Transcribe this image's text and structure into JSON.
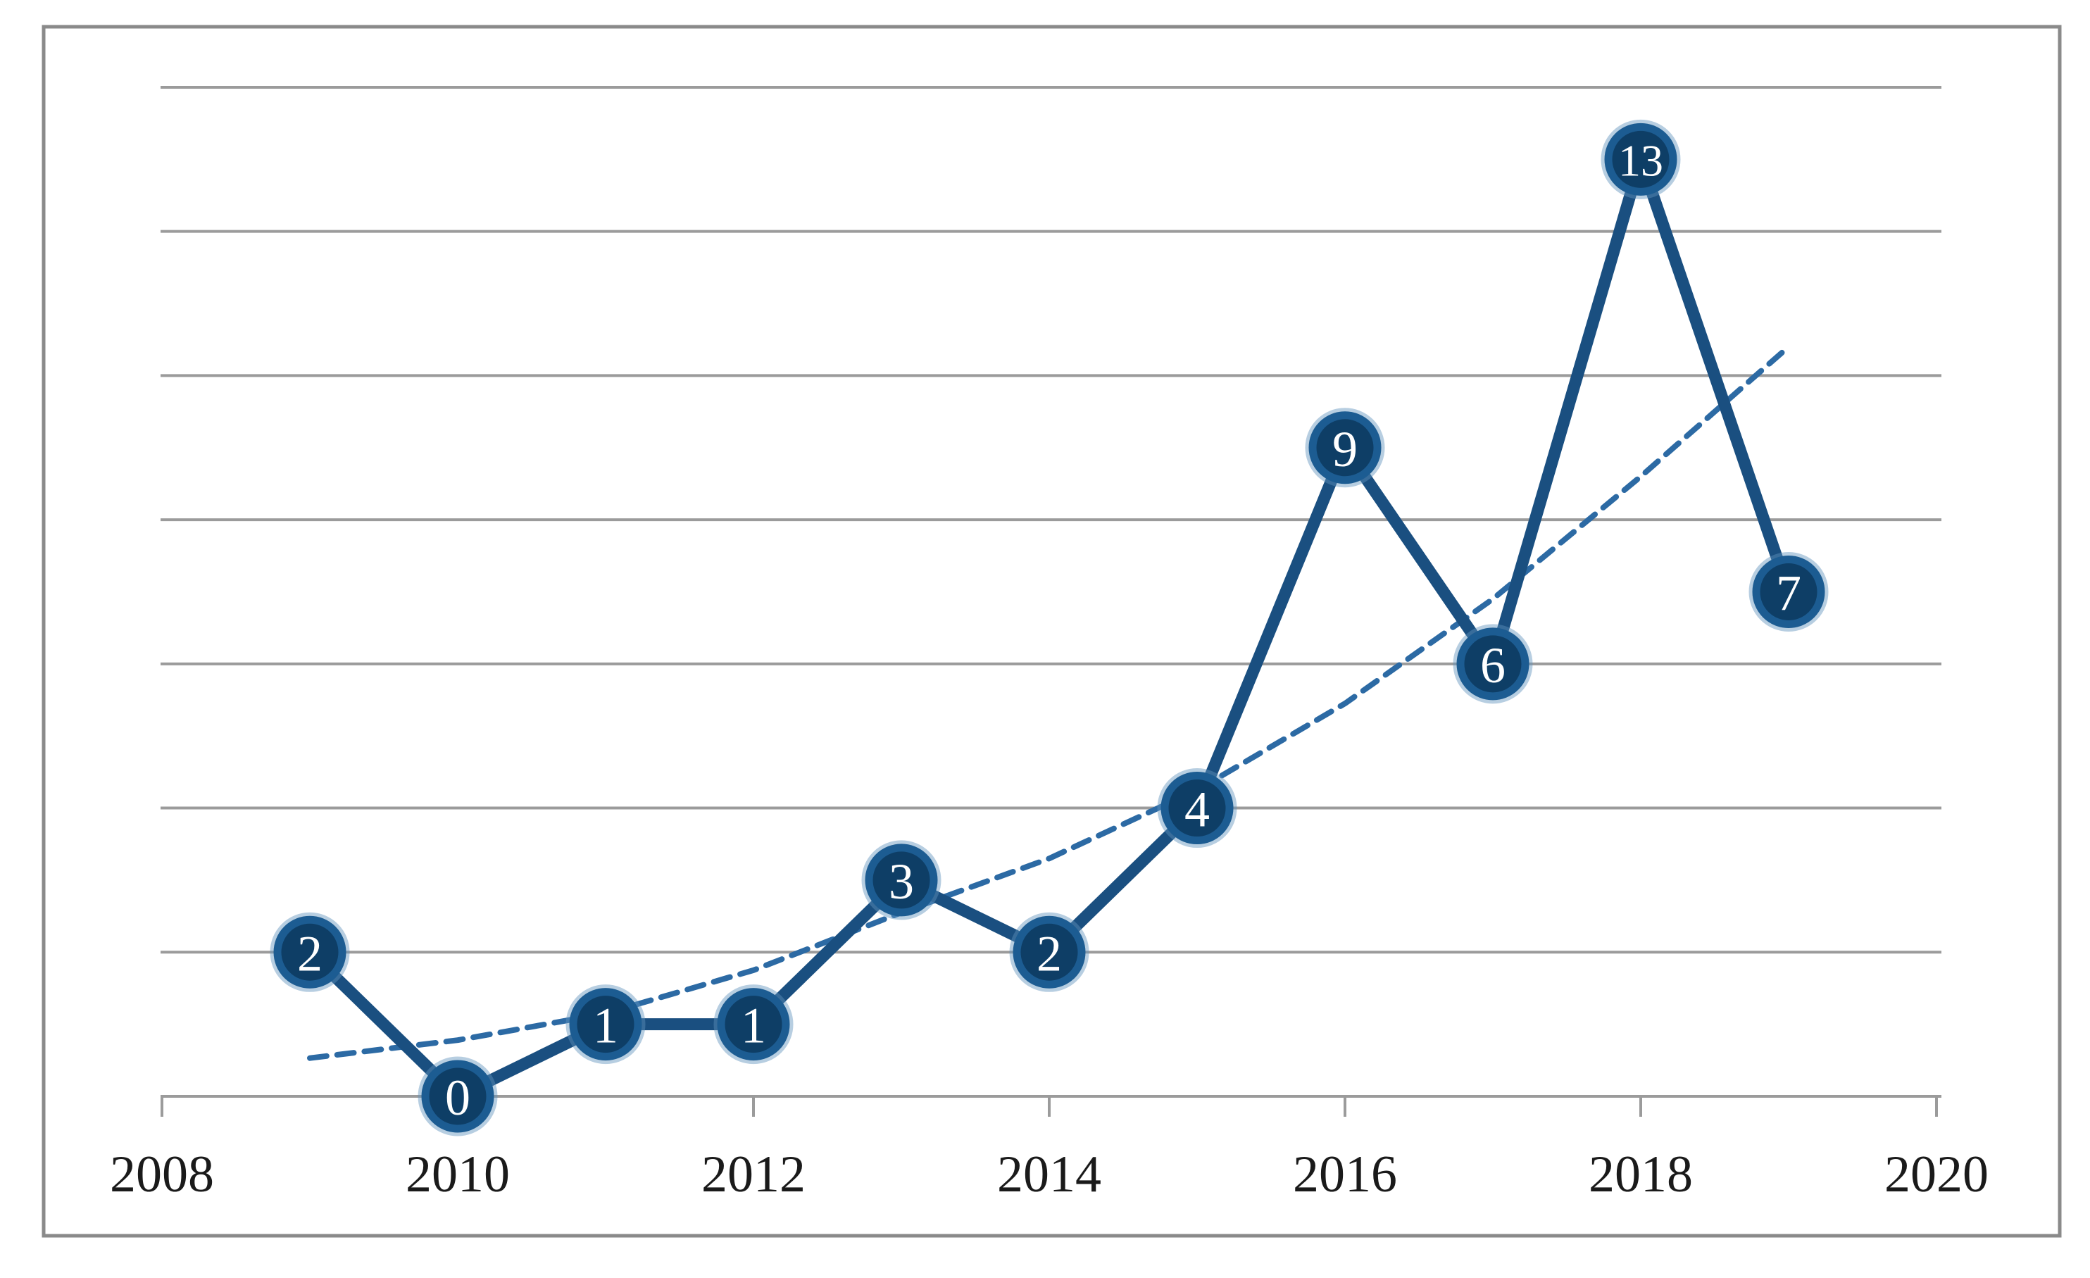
{
  "chart_data": {
    "type": "line",
    "title": "",
    "xlabel": "",
    "ylabel": "",
    "x": [
      2009,
      2010,
      2011,
      2012,
      2013,
      2014,
      2015,
      2016,
      2017,
      2018,
      2019
    ],
    "values": [
      2,
      0,
      1,
      1,
      3,
      2,
      4,
      9,
      6,
      13,
      7
    ],
    "point_labels": [
      "2",
      "0",
      "1",
      "1",
      "3",
      "2",
      "4",
      "9",
      "6",
      "13",
      "7"
    ],
    "x_tick_labels": [
      "2008",
      "2010",
      "2012",
      "2014",
      "2016",
      "2018",
      "2020"
    ],
    "x_ticks": [
      2008,
      2010,
      2012,
      2014,
      2016,
      2018,
      2020
    ],
    "xlim": [
      2008,
      2020
    ],
    "ylim": [
      0,
      14
    ],
    "y_grid_step": 2,
    "grid": true,
    "legend": "none",
    "trendline": {
      "style": "dashed",
      "x": [
        2009,
        2010,
        2011,
        2012,
        2013,
        2014,
        2015,
        2016,
        2017,
        2018,
        2019
      ],
      "values_est": [
        0.53,
        0.78,
        1.15,
        1.75,
        2.55,
        3.3,
        4.25,
        5.45,
        6.9,
        8.6,
        10.4
      ]
    },
    "colors": {
      "series_line": "#1a4f80",
      "marker_fill": "#0e3e66",
      "marker_ring": "#1c5c92",
      "marker_halo": "#5f93bd",
      "marker_text": "#ffffff",
      "trendline": "#2c6aa4",
      "gridline": "#9b9b9b",
      "axis_line": "#9b9b9b",
      "frame_border": "#8a8a8a",
      "tick_label": "#1a1a1a",
      "background": "#ffffff"
    }
  }
}
